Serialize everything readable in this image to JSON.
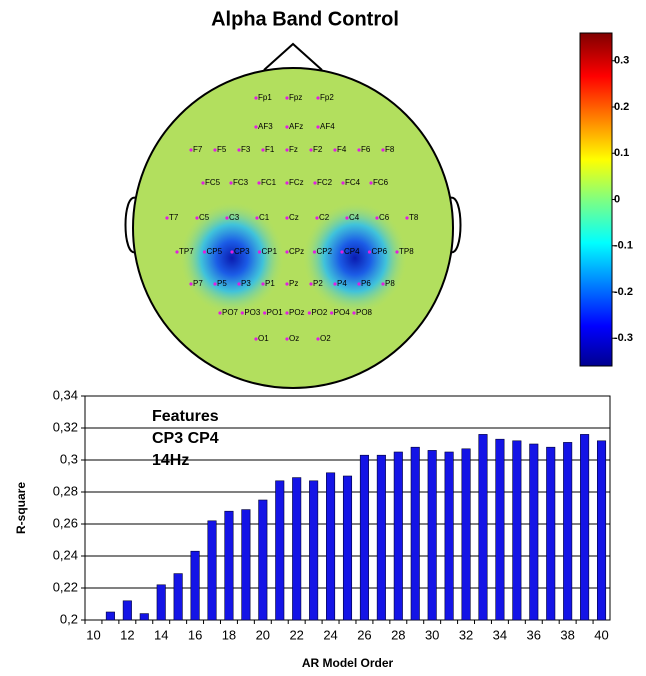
{
  "chart_data": [
    {
      "type": "topomap",
      "title": "Alpha Band Control",
      "electrodes": [
        [
          "Fp1",
          "Fpz",
          "Fp2"
        ],
        [
          "AF3",
          "AFz",
          "AF4"
        ],
        [
          "F7",
          "F5",
          "F3",
          "F1",
          "Fz",
          "F2",
          "F4",
          "F6",
          "F8"
        ],
        [
          "FC5",
          "FC3",
          "FC1",
          "FCz",
          "FC2",
          "FC4",
          "FC6"
        ],
        [
          "T7",
          "C5",
          "C3",
          "C1",
          "Cz",
          "C2",
          "C4",
          "C6",
          "T8"
        ],
        [
          "TP7",
          "CP5",
          "CP3",
          "CP1",
          "CPz",
          "CP2",
          "CP4",
          "CP6",
          "TP8"
        ],
        [
          "P7",
          "P5",
          "P3",
          "P1",
          "Pz",
          "P2",
          "P4",
          "P6",
          "P8"
        ],
        [
          "PO7",
          "PO3",
          "PO1",
          "POz",
          "PO2",
          "PO4",
          "PO8"
        ],
        [
          "O1",
          "Oz",
          "O2"
        ]
      ],
      "ylim": [
        -0.36,
        0.36
      ],
      "yticks": [
        0.3,
        0.2,
        0.1,
        0,
        -0.1,
        -0.2,
        -0.3
      ]
    },
    {
      "type": "bar",
      "xlabel": "AR Model Order",
      "ylabel": "R-square",
      "annotations": [
        "Features",
        "CP3 CP4",
        "14Hz"
      ],
      "categories": [
        "10",
        null,
        "12",
        null,
        "14",
        null,
        "16",
        null,
        "18",
        null,
        "20",
        null,
        "22",
        null,
        "24",
        null,
        "26",
        null,
        "28",
        null,
        "30",
        null,
        "32",
        null,
        "34",
        null,
        "36",
        null,
        "38",
        null,
        "40"
      ],
      "values": [
        null,
        0.205,
        0.212,
        0.204,
        0.222,
        0.229,
        0.243,
        0.262,
        0.268,
        0.269,
        0.275,
        0.287,
        0.289,
        0.287,
        0.292,
        0.29,
        0.303,
        0.303,
        0.305,
        0.308,
        0.306,
        0.305,
        0.307,
        0.316,
        0.313,
        0.312,
        0.31,
        0.308,
        0.311,
        0.316,
        0.312
      ],
      "color": "#1414e6",
      "ylim": [
        0.2,
        0.34
      ],
      "yticks": [
        {
          "value": 0.2,
          "label": "0,2"
        },
        {
          "value": 0.22,
          "label": "0,22"
        },
        {
          "value": 0.24,
          "label": "0,24"
        },
        {
          "value": 0.26,
          "label": "0,26"
        },
        {
          "value": 0.28,
          "label": "0,28"
        },
        {
          "value": 0.3,
          "label": "0,3"
        },
        {
          "value": 0.32,
          "label": "0,32"
        },
        {
          "value": 0.34,
          "label": "0,34"
        }
      ],
      "grid": true
    }
  ]
}
